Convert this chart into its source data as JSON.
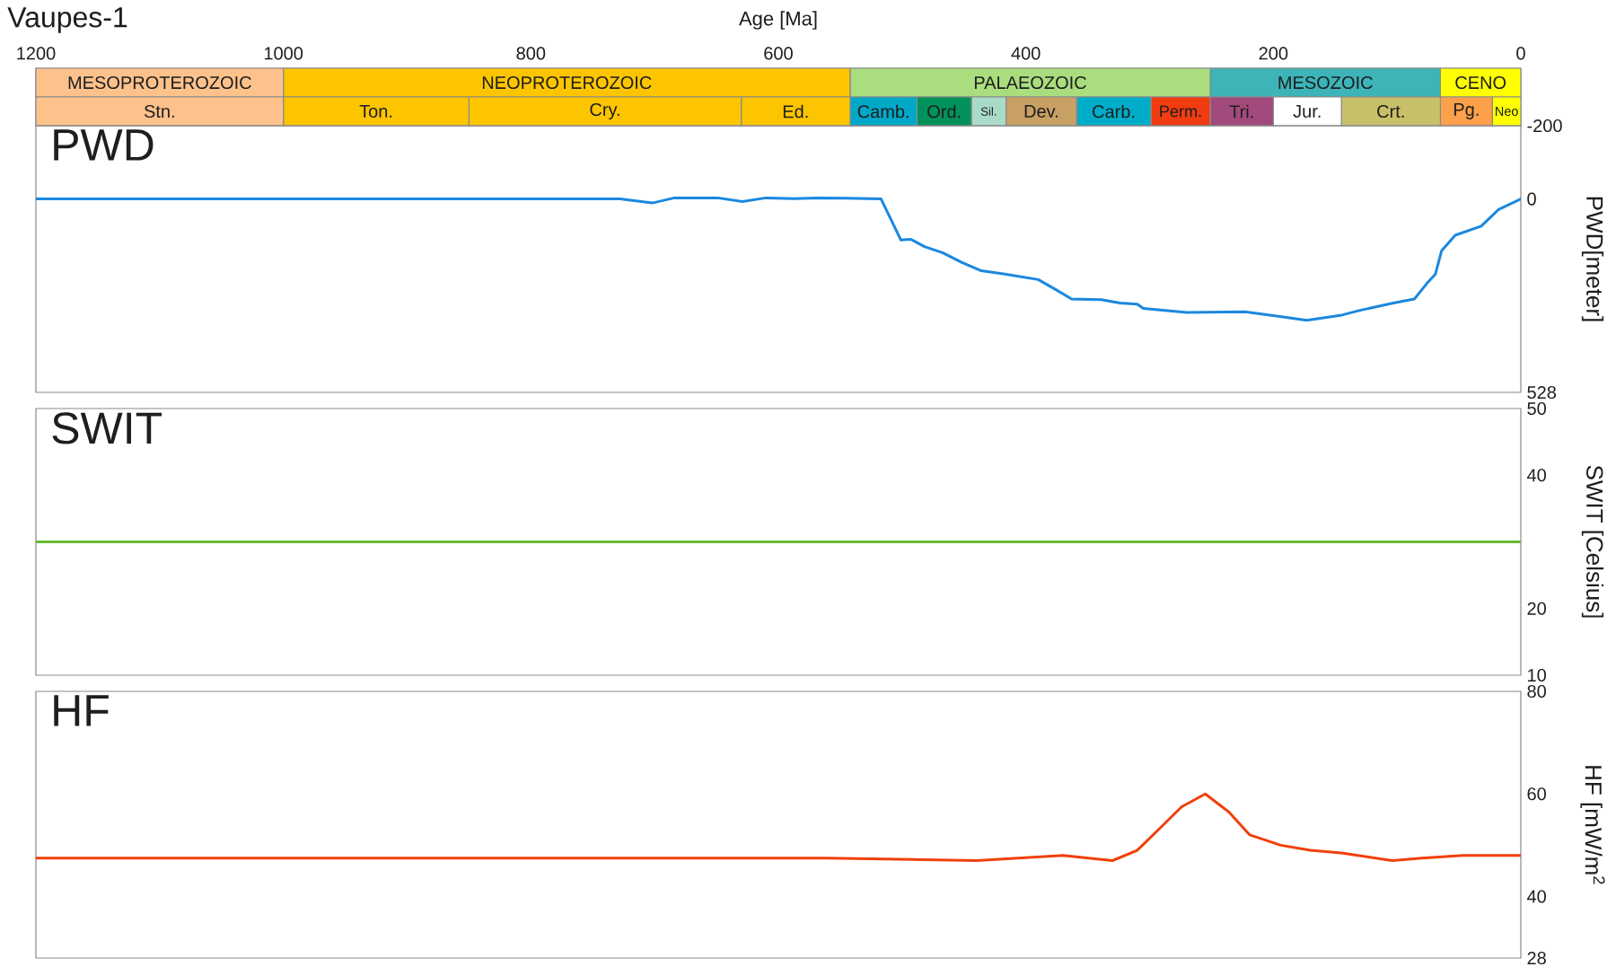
{
  "chart_data": [
    {
      "type": "bar",
      "title": "Vaupes-1",
      "xlabel": "Age [Ma]",
      "orientation": "horizontal",
      "stacked": true,
      "categories": [
        null,
        null
      ],
      "xlim": [
        1200,
        0
      ],
      "xticks": [
        1200,
        1000,
        800,
        600,
        400,
        200,
        0
      ],
      "series": [
        {
          "name": "CENO",
          "color": "#ffff00",
          "values": [
            65,
            null
          ]
        },
        {
          "name": "MESOZOIC",
          "color": "#3cb4b8",
          "values": [
            186,
            null
          ]
        },
        {
          "name": "PALAEOZOIC",
          "color": "#aadd7e",
          "values": [
            291,
            null
          ]
        },
        {
          "name": "NEOPROTEROZOIC",
          "color": "#fdc500",
          "values": [
            458,
            null
          ]
        },
        {
          "name": "MESOPROTEROZOIC",
          "color": "#fdc28c",
          "values": [
            200,
            null
          ]
        },
        {
          "name": "Neo",
          "color": "#ffff00",
          "values": [
            null,
            23
          ]
        },
        {
          "name": "Pg.",
          "color": "#fda04a",
          "values": [
            null,
            42
          ]
        },
        {
          "name": "Crt.",
          "color": "#c8c068",
          "values": [
            null,
            80
          ]
        },
        {
          "name": "Jur.",
          "color": "#ffffff",
          "values": [
            null,
            55
          ]
        },
        {
          "name": "Tri.",
          "color": "#a24a7c",
          "values": [
            null,
            51
          ]
        },
        {
          "name": "Perm.",
          "color": "#f03c10",
          "values": [
            null,
            48
          ]
        },
        {
          "name": "Carb.",
          "color": "#00adc8",
          "values": [
            null,
            60
          ]
        },
        {
          "name": "Dev.",
          "color": "#c8a064",
          "values": [
            null,
            57
          ]
        },
        {
          "name": "Sil.",
          "color": "#a8dcc8",
          "values": [
            null,
            28
          ]
        },
        {
          "name": "Ord.",
          "color": "#00925a",
          "values": [
            null,
            44
          ]
        },
        {
          "name": "Camb.",
          "color": "#00a8c8",
          "values": [
            null,
            54
          ]
        },
        {
          "name": "Ed.",
          "color": "#fdc500",
          "values": [
            null,
            88
          ]
        },
        {
          "name": "Cry.",
          "color": "#fdc500",
          "values": [
            null,
            220
          ]
        },
        {
          "name": "Ton.",
          "color": "#fdc500",
          "values": [
            null,
            150
          ]
        },
        {
          "name": "Stn.",
          "color": "#fdc28c",
          "values": [
            null,
            200
          ]
        }
      ]
    },
    {
      "type": "line",
      "title": "PWD",
      "ylabel": "PWD[meter]",
      "xlim": [
        1200,
        0
      ],
      "ylim": [
        528,
        -200
      ],
      "yticks": [
        -200,
        0,
        528
      ],
      "tick_labels": "y",
      "color": "#1a88e0",
      "x": [
        1200,
        728,
        702,
        684,
        649,
        629,
        610,
        587,
        569,
        546,
        517,
        501,
        493,
        482,
        467,
        452,
        436,
        417,
        390,
        376,
        363,
        339,
        324,
        310,
        305,
        270,
        223,
        196,
        173,
        146,
        130,
        103,
        86,
        76,
        69,
        64,
        53,
        32,
        18,
        0
      ],
      "values": [
        0,
        0,
        11,
        -3,
        -3,
        7,
        -3,
        -1,
        -3,
        -2,
        0,
        112,
        110,
        130,
        147,
        173,
        196,
        205,
        220,
        247,
        273,
        275,
        284,
        287,
        299,
        310,
        308,
        320,
        331,
        318,
        304,
        284,
        273,
        231,
        205,
        141,
        99,
        74,
        29,
        0
      ]
    },
    {
      "type": "line",
      "title": "SWIT",
      "ylabel": "SWIT [Celsius]",
      "xlim": [
        1200,
        0
      ],
      "ylim": [
        10,
        50
      ],
      "yticks": [
        10,
        20,
        40,
        50
      ],
      "tick_labels": "y",
      "color": "#66bb33",
      "x": [
        1200,
        0
      ],
      "values": [
        30,
        30
      ]
    },
    {
      "type": "line",
      "title": "HF",
      "ylabel": "HF [mW/m$^{2}$",
      "xlim": [
        1200,
        0
      ],
      "ylim": [
        28,
        80
      ],
      "yticks": [
        28,
        40,
        60,
        80
      ],
      "tick_labels": "y",
      "color": "#f0400a",
      "x": [
        1200,
        560,
        440,
        370,
        330,
        310,
        293,
        274,
        255,
        236,
        219,
        194,
        170,
        145,
        104,
        80,
        47,
        0
      ],
      "values": [
        47.5,
        47.5,
        47,
        48,
        47,
        49,
        53,
        57.5,
        60,
        56.5,
        52,
        50,
        49,
        48.5,
        47,
        47.5,
        48,
        48
      ]
    }
  ]
}
